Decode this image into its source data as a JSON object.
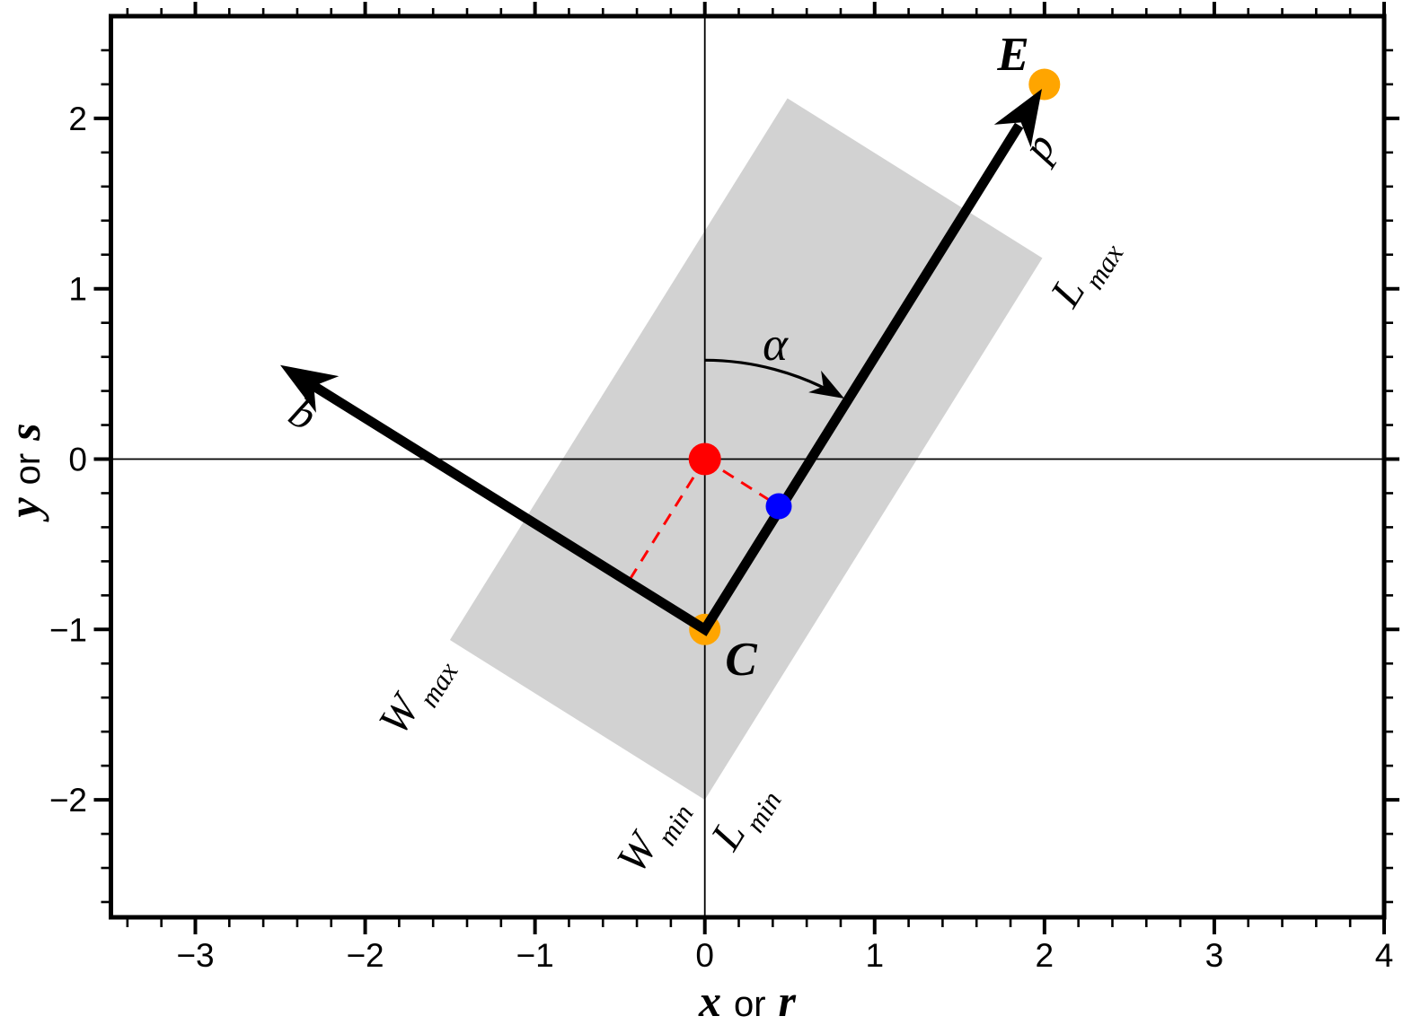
{
  "chart_data": {
    "type": "diagram",
    "description": "Oblique coordinate system diagram: center C, end point E, axes p and q rotated by angle alpha from north, gray region bounded by L_min/L_max along p and W_min/W_max along q",
    "x_axis": {
      "range": [
        -3.5,
        4.0
      ],
      "major_ticks": [
        -3,
        -2,
        -1,
        0,
        1,
        2,
        3,
        4
      ],
      "tick_labels": [
        "−3",
        "−2",
        "−1",
        "0",
        "1",
        "2",
        "3",
        "4"
      ],
      "minor_step": 0.2,
      "title": {
        "var1": "x",
        "conj": "or",
        "var2": "r"
      }
    },
    "y_axis": {
      "range": [
        -2.69,
        2.6
      ],
      "major_ticks": [
        -2,
        -1,
        0,
        1,
        2
      ],
      "tick_labels": [
        "−2",
        "−1",
        "0",
        "1",
        "2"
      ],
      "minor_step": 0.2,
      "title": {
        "var1": "y",
        "conj": "or",
        "var2": "s"
      }
    },
    "points": [
      {
        "name": "origin",
        "x": 0,
        "y": 0,
        "color": "#ff0000",
        "label": ""
      },
      {
        "name": "C",
        "x": 0,
        "y": -1,
        "color": "#ffa500",
        "label": "C"
      },
      {
        "name": "E",
        "x": 2,
        "y": 2.2,
        "color": "#ffa500",
        "label": "E"
      },
      {
        "name": "projection-of-origin-on-p",
        "x": 0.45,
        "y": -0.28,
        "color": "#0000ff",
        "label": ""
      }
    ],
    "vectors": [
      {
        "name": "p",
        "from": [
          0,
          -1
        ],
        "to": [
          2,
          2.2
        ],
        "label": "p"
      },
      {
        "name": "q",
        "from": [
          0,
          -1
        ],
        "to": [
          -2.5,
          0.55
        ],
        "label": "q"
      }
    ],
    "dashed_perpendiculars": [
      {
        "from": [
          0,
          0
        ],
        "to": [
          0.45,
          -0.28
        ],
        "color": "#ff0000"
      },
      {
        "from": [
          0,
          0
        ],
        "to": [
          -0.45,
          -0.72
        ],
        "color": "#ff0000"
      }
    ],
    "region_rectangle": {
      "corner": [
        0,
        -2
      ],
      "length_along_p": 3.75,
      "width_along_q": 1.77,
      "fill": "#d2d2d2",
      "edge_labels": [
        "L_min",
        "L_max",
        "W_min",
        "W_max"
      ]
    },
    "angle_arc": {
      "label": "α",
      "center": [
        0,
        -1
      ],
      "radius": 1.58,
      "from_deg": 90,
      "to_deg": 60
    }
  },
  "labels": {
    "E": "E",
    "C": "C",
    "p": "p",
    "q": "q",
    "alpha": "α",
    "W": "W",
    "L": "L",
    "min": "min",
    "max": "max",
    "x_var1": "x",
    "x_conj": "or",
    "x_var2": "r",
    "y_var1": "y",
    "y_conj": "or",
    "y_var2": "s"
  }
}
